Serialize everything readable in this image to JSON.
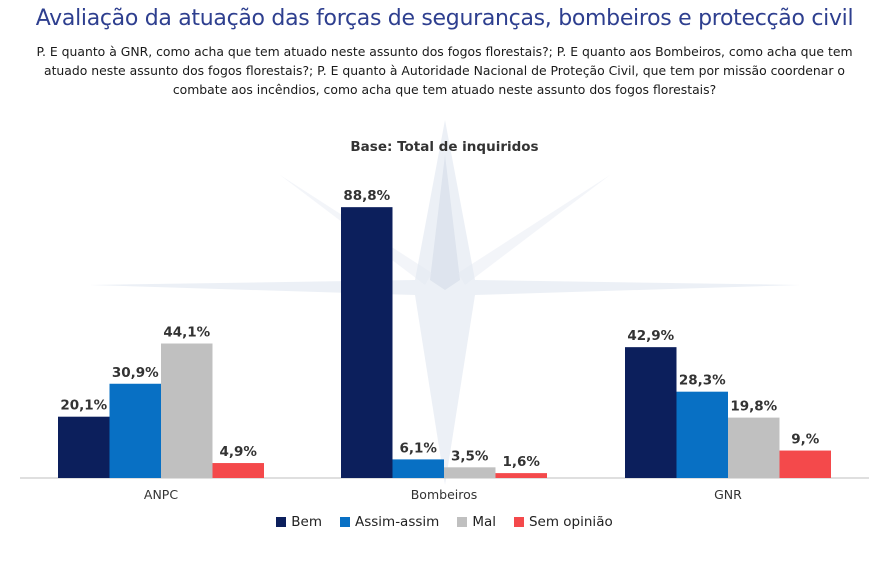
{
  "title": "Avaliação da atuação das forças de seguranças, bombeiros e protecção civil",
  "question": "P. E quanto à GNR, como acha que tem atuado neste assunto dos fogos florestais?; P. E quanto aos Bombeiros, como acha que tem atuado neste assunto dos fogos florestais?; P. E quanto à Autoridade Nacional de Proteção Civil, que tem por missão coordenar o combate aos incêndios, como acha que tem atuado neste assunto dos fogos florestais?",
  "chart_data": {
    "type": "bar",
    "title": "Base: Total de inquiridos",
    "xlabel": "",
    "ylabel": "",
    "ylim": [
      0,
      100
    ],
    "grid": false,
    "legend_position": "bottom",
    "categories": [
      "ANPC",
      "Bombeiros",
      "GNR"
    ],
    "series": [
      {
        "name": "Bem",
        "color": "#0c1f5c",
        "values": [
          20.1,
          88.8,
          42.9
        ],
        "labels": [
          "20,1%",
          "88,8%",
          "42,9%"
        ]
      },
      {
        "name": "Assim-assim",
        "color": "#0870c4",
        "values": [
          30.9,
          6.1,
          28.3
        ],
        "labels": [
          "30,9%",
          "6,1%",
          "28,3%"
        ]
      },
      {
        "name": "Mal",
        "color": "#c0c0c0",
        "values": [
          44.1,
          3.5,
          19.8
        ],
        "labels": [
          "44,1%",
          "3,5%",
          "19,8%"
        ]
      },
      {
        "name": "Sem opinião",
        "color": "#f4494b",
        "values": [
          4.9,
          1.6,
          9.0
        ],
        "labels": [
          "4,9%",
          "1,6%",
          "9,%"
        ]
      }
    ]
  }
}
